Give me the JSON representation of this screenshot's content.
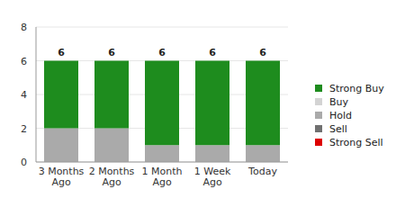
{
  "chart_data": {
    "type": "bar",
    "stacked": true,
    "grid": true,
    "legend": "right",
    "categories": [
      "3 Months Ago",
      "2 Months Ago",
      "1 Month Ago",
      "1 Week Ago",
      "Today"
    ],
    "series": [
      {
        "name": "Strong Buy",
        "color": "#1e8c1e",
        "values": [
          4,
          4,
          5,
          5,
          5
        ]
      },
      {
        "name": "Buy",
        "color": "#d3d3d3",
        "values": [
          0,
          0,
          0,
          0,
          0
        ]
      },
      {
        "name": "Hold",
        "color": "#aaaaaa",
        "values": [
          2,
          2,
          1,
          1,
          1
        ]
      },
      {
        "name": "Sell",
        "color": "#707070",
        "values": [
          0,
          0,
          0,
          0,
          0
        ]
      },
      {
        "name": "Strong Sell",
        "color": "#dd0000",
        "values": [
          0,
          0,
          0,
          0,
          0
        ]
      }
    ],
    "totals": [
      6,
      6,
      6,
      6,
      6
    ],
    "ylim": [
      0,
      8
    ],
    "yticks": [
      0,
      2,
      4,
      6,
      8
    ]
  }
}
